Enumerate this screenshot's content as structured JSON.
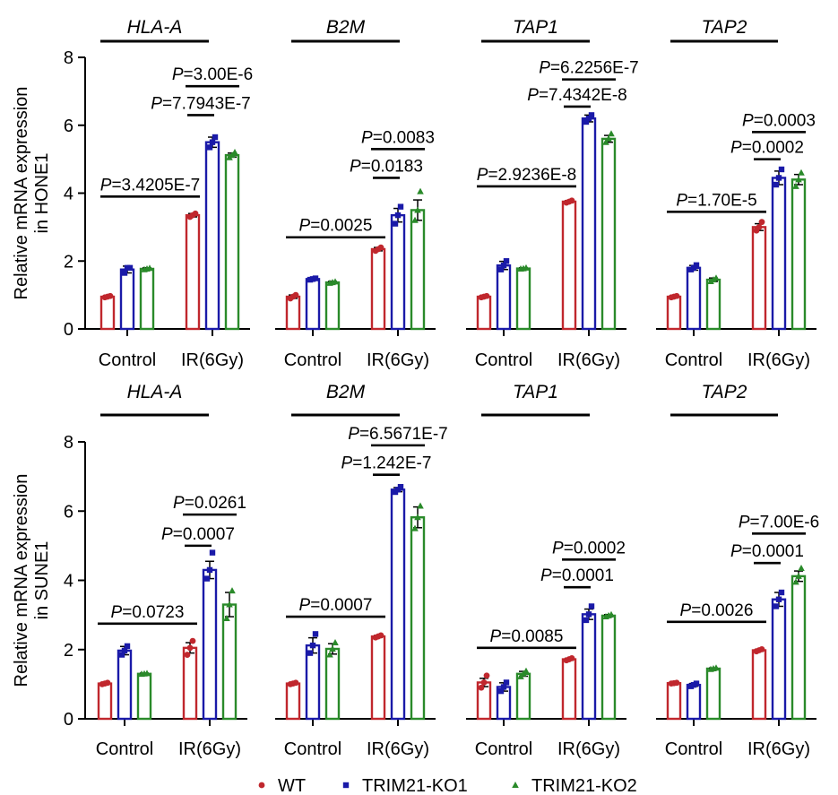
{
  "colors": {
    "WT": "#c0272d",
    "TRIM21-KO1": "#1a1aa8",
    "TRIM21-KO2": "#2a8a2a",
    "axis": "#000000"
  },
  "legend": [
    {
      "label": "WT",
      "marker": "circle"
    },
    {
      "label": "TRIM21-KO1",
      "marker": "square"
    },
    {
      "label": "TRIM21-KO2",
      "marker": "triangle"
    }
  ],
  "chart_data": [
    {
      "type": "bar",
      "ylabel": [
        "Relative mRNA expression",
        "in HONE1"
      ],
      "ylim": [
        0,
        8
      ],
      "yticks": [
        "0",
        "2",
        "4",
        "6",
        "8"
      ],
      "groups": [
        "Control",
        "IR(6Gy)"
      ],
      "series_names": [
        "WT",
        "TRIM21-KO1",
        "TRIM21-KO2"
      ],
      "genes": [
        {
          "title": "HLA-A",
          "values": [
            [
              0.95,
              1.75,
              1.77
            ],
            [
              3.35,
              5.5,
              5.12
            ]
          ],
          "errors": [
            [
              0.03,
              0.1,
              0.03
            ],
            [
              0.05,
              0.15,
              0.06
            ]
          ],
          "points": [
            [
              [
                0.93,
                0.95,
                0.97
              ],
              [
                1.65,
                1.8,
                1.8
              ],
              [
                1.75,
                1.77,
                1.79
              ]
            ],
            [
              [
                3.3,
                3.35,
                3.4
              ],
              [
                5.35,
                5.5,
                5.65
              ],
              [
                5.05,
                5.12,
                5.2
              ]
            ]
          ],
          "annotations": [
            {
              "kind": "ctrl_vs_ir",
              "p": "=3.4205E-7",
              "y": 3.9
            },
            {
              "kind": "ir_wt_ko1",
              "p": "=7.7943E-7",
              "y": 6.3
            },
            {
              "kind": "ir_wt_ko2",
              "p": "=3.00E-6",
              "y": 7.15
            }
          ]
        },
        {
          "title": "B2M",
          "values": [
            [
              0.95,
              1.47,
              1.37
            ],
            [
              2.35,
              3.35,
              3.5
            ]
          ],
          "errors": [
            [
              0.05,
              0.03,
              0.03
            ],
            [
              0.05,
              0.2,
              0.3
            ]
          ],
          "points": [
            [
              [
                0.9,
                0.95,
                1.0
              ],
              [
                1.45,
                1.47,
                1.49
              ],
              [
                1.35,
                1.37,
                1.39
              ]
            ],
            [
              [
                2.3,
                2.35,
                2.4
              ],
              [
                3.1,
                3.35,
                3.6
              ],
              [
                3.2,
                3.5,
                4.05
              ]
            ]
          ],
          "annotations": [
            {
              "kind": "ctrl_vs_ir",
              "p": "=0.0025",
              "y": 2.7
            },
            {
              "kind": "ir_wt_ko1",
              "p": "=0.0183",
              "y": 4.45
            },
            {
              "kind": "ir_wt_ko2",
              "p": "=0.0083",
              "y": 5.3
            }
          ]
        },
        {
          "title": "TAP1",
          "values": [
            [
              0.95,
              1.87,
              1.78
            ],
            [
              3.75,
              6.2,
              5.6
            ]
          ],
          "errors": [
            [
              0.02,
              0.12,
              0.02
            ],
            [
              0.03,
              0.1,
              0.1
            ]
          ],
          "points": [
            [
              [
                0.93,
                0.95,
                0.97
              ],
              [
                1.75,
                1.87,
                2.0
              ],
              [
                1.77,
                1.78,
                1.8
              ]
            ],
            [
              [
                3.72,
                3.75,
                3.78
              ],
              [
                6.1,
                6.2,
                6.3
              ],
              [
                5.5,
                5.6,
                5.75
              ]
            ]
          ],
          "annotations": [
            {
              "kind": "ctrl_vs_ir",
              "p": "=2.9236E-8",
              "y": 4.2
            },
            {
              "kind": "ir_wt_ko1",
              "p": "=7.4342E-8",
              "y": 6.55
            },
            {
              "kind": "ir_wt_ko2",
              "p": "=6.2256E-7",
              "y": 7.35
            }
          ]
        },
        {
          "title": "TAP2",
          "values": [
            [
              0.95,
              1.8,
              1.45
            ],
            [
              3.0,
              4.45,
              4.4
            ]
          ],
          "errors": [
            [
              0.02,
              0.07,
              0.05
            ],
            [
              0.1,
              0.2,
              0.15
            ]
          ],
          "points": [
            [
              [
                0.93,
                0.95,
                0.97
              ],
              [
                1.75,
                1.8,
                1.88
              ],
              [
                1.4,
                1.45,
                1.5
              ]
            ],
            [
              [
                2.9,
                3.0,
                3.15
              ],
              [
                4.25,
                4.45,
                4.7
              ],
              [
                4.2,
                4.4,
                4.6
              ]
            ]
          ],
          "annotations": [
            {
              "kind": "ctrl_vs_ir",
              "p": "=1.70E-5",
              "y": 3.45
            },
            {
              "kind": "ir_wt_ko1",
              "p": "=0.0002",
              "y": 5.0
            },
            {
              "kind": "ir_wt_ko2",
              "p": "=0.0003",
              "y": 5.8
            }
          ]
        }
      ]
    },
    {
      "type": "bar",
      "ylabel": [
        "Relative mRNA expression",
        "in SUNE1"
      ],
      "ylim": [
        0,
        8
      ],
      "yticks": [
        "0",
        "2",
        "4",
        "6",
        "8"
      ],
      "groups": [
        "Control",
        "IR(6Gy)"
      ],
      "series_names": [
        "WT",
        "TRIM21-KO1",
        "TRIM21-KO2"
      ],
      "genes": [
        {
          "title": "HLA-A",
          "values": [
            [
              1.02,
              1.97,
              1.3
            ],
            [
              2.05,
              4.3,
              3.3
            ]
          ],
          "errors": [
            [
              0.02,
              0.12,
              0.02
            ],
            [
              0.15,
              0.25,
              0.35
            ]
          ],
          "points": [
            [
              [
                1.0,
                1.02,
                1.04
              ],
              [
                1.85,
                1.97,
                2.1
              ],
              [
                1.29,
                1.3,
                1.31
              ]
            ],
            [
              [
                1.85,
                2.05,
                2.25
              ],
              [
                4.05,
                4.3,
                4.8
              ],
              [
                2.9,
                3.3,
                3.7
              ]
            ]
          ],
          "annotations": [
            {
              "kind": "ctrl_vs_ir",
              "p": "=0.0723",
              "y": 2.75
            },
            {
              "kind": "ir_wt_ko1",
              "p": "=0.0007",
              "y": 5.0
            },
            {
              "kind": "ir_wt_ko2",
              "p": "=0.0261",
              "y": 5.9
            }
          ]
        },
        {
          "title": "B2M",
          "values": [
            [
              1.02,
              2.12,
              2.02
            ],
            [
              2.38,
              6.62,
              5.82
            ]
          ],
          "errors": [
            [
              0.03,
              0.22,
              0.15
            ],
            [
              0.03,
              0.06,
              0.3
            ]
          ],
          "points": [
            [
              [
                1.0,
                1.02,
                1.04
              ],
              [
                1.9,
                2.12,
                2.45
              ],
              [
                1.85,
                2.02,
                2.2
              ]
            ],
            [
              [
                2.35,
                2.38,
                2.41
              ],
              [
                6.55,
                6.62,
                6.7
              ],
              [
                5.5,
                5.82,
                6.15
              ]
            ]
          ],
          "annotations": [
            {
              "kind": "ctrl_vs_ir",
              "p": "=0.0007",
              "y": 2.95
            },
            {
              "kind": "ir_wt_ko1",
              "p": "=1.242E-7",
              "y": 7.05
            },
            {
              "kind": "ir_wt_ko2",
              "p": "=6.5671E-7",
              "y": 7.9
            }
          ]
        },
        {
          "title": "TAP1",
          "values": [
            [
              1.05,
              0.92,
              1.3
            ],
            [
              1.72,
              3.02,
              2.98
            ]
          ],
          "errors": [
            [
              0.12,
              0.12,
              0.07
            ],
            [
              0.03,
              0.15,
              0.03
            ]
          ],
          "points": [
            [
              [
                0.9,
                1.05,
                1.25
              ],
              [
                0.8,
                0.92,
                1.05
              ],
              [
                1.22,
                1.3,
                1.38
              ]
            ],
            [
              [
                1.69,
                1.72,
                1.75
              ],
              [
                2.85,
                3.02,
                3.25
              ],
              [
                2.95,
                2.98,
                3.01
              ]
            ]
          ],
          "annotations": [
            {
              "kind": "ctrl_vs_ir",
              "p": "=0.0085",
              "y": 2.05
            },
            {
              "kind": "ir_wt_ko1",
              "p": "=0.0001",
              "y": 3.8
            },
            {
              "kind": "ir_wt_ko2",
              "p": "=0.0002",
              "y": 4.6
            }
          ]
        },
        {
          "title": "TAP2",
          "values": [
            [
              1.03,
              0.98,
              1.45
            ],
            [
              1.98,
              3.45,
              4.12
            ]
          ],
          "errors": [
            [
              0.01,
              0.04,
              0.02
            ],
            [
              0.03,
              0.2,
              0.15
            ]
          ],
          "points": [
            [
              [
                1.02,
                1.03,
                1.04
              ],
              [
                0.94,
                0.98,
                1.02
              ],
              [
                1.43,
                1.45,
                1.47
              ]
            ],
            [
              [
                1.95,
                1.98,
                2.01
              ],
              [
                3.25,
                3.45,
                3.65
              ],
              [
                3.95,
                4.12,
                4.35
              ]
            ]
          ],
          "annotations": [
            {
              "kind": "ctrl_vs_ir",
              "p": "=0.0026",
              "y": 2.8
            },
            {
              "kind": "ir_wt_ko1",
              "p": "=0.0001",
              "y": 4.5
            },
            {
              "kind": "ir_wt_ko2",
              "p": "=7.00E-6",
              "y": 5.35
            }
          ]
        }
      ]
    }
  ]
}
